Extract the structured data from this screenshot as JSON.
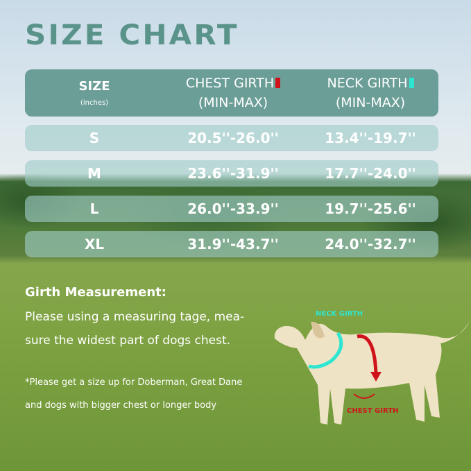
{
  "title": "SIZE CHART",
  "table": {
    "headers": {
      "size": "SIZE",
      "unit": "(inches)",
      "chest": "CHEST GIRTH",
      "neck": "NECK GIRTH",
      "range": "(MIN-MAX)"
    },
    "rows": [
      {
        "size": "S",
        "chest": "20.5''-26.0''",
        "neck": "13.4''-19.7''"
      },
      {
        "size": "M",
        "chest": "23.6''-31.9''",
        "neck": "17.7''-24.0''"
      },
      {
        "size": "L",
        "chest": "26.0''-33.9''",
        "neck": "19.7''-25.6''"
      },
      {
        "size": "XL",
        "chest": "31.9''-43.7''",
        "neck": "24.0''-32.7''"
      }
    ]
  },
  "colors": {
    "chest_marker": "#d0131b",
    "neck_marker": "#2ee6d0",
    "header_bg": "#6c9e98",
    "title": "#5a9389"
  },
  "girth": {
    "heading": "Girth Measurement:",
    "line1": "Please using a measuring tage, mea-",
    "line2": "sure the widest part of dogs chest."
  },
  "note": {
    "line1": "*Please get a size up for Doberman, Great Dane",
    "line2": "and dogs with bigger chest or longer body"
  },
  "dog": {
    "neck_label": "NECK GIRTH",
    "chest_label": "CHEST GIRTH"
  }
}
